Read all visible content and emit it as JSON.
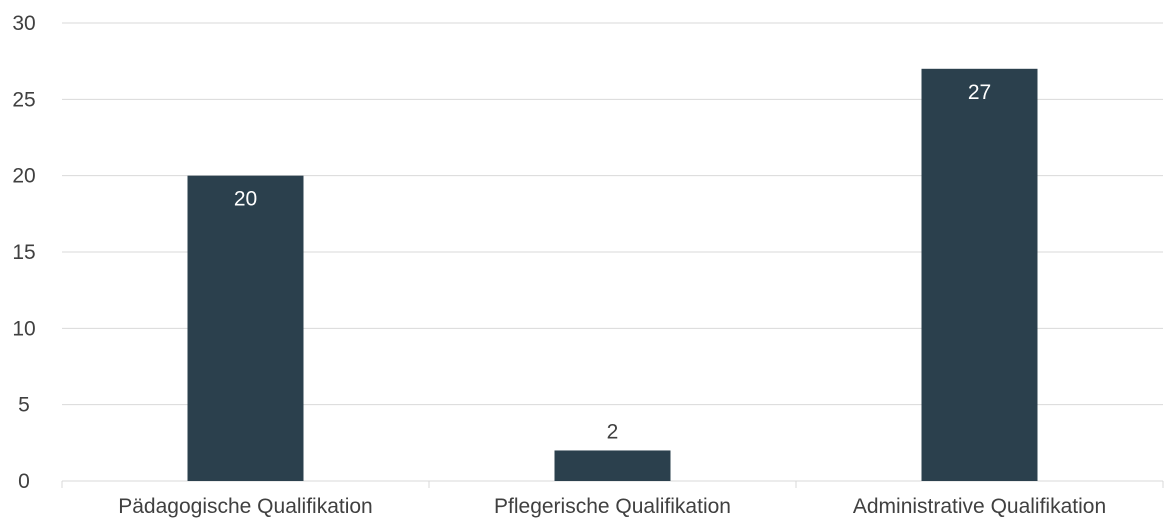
{
  "chart_data": {
    "type": "bar",
    "title": "",
    "xlabel": "",
    "ylabel": "",
    "categories": [
      "Pädagogische Qualifikation",
      "Pflegerische Qualifikation",
      "Administrative Qualifikation"
    ],
    "values": [
      20,
      2,
      27
    ],
    "data_labels": [
      "20",
      "2",
      "27"
    ],
    "ylim": [
      0,
      30
    ],
    "y_ticks": [
      0,
      5,
      10,
      15,
      20,
      25,
      30
    ],
    "grid": true,
    "legend": "none",
    "colors": {
      "bar": "#2b404d",
      "grid": "#d9d9d9",
      "axis": "#d9d9d9",
      "label_inside": "#ffffff",
      "label_outside": "#404040",
      "tick_text": "#404040"
    }
  }
}
